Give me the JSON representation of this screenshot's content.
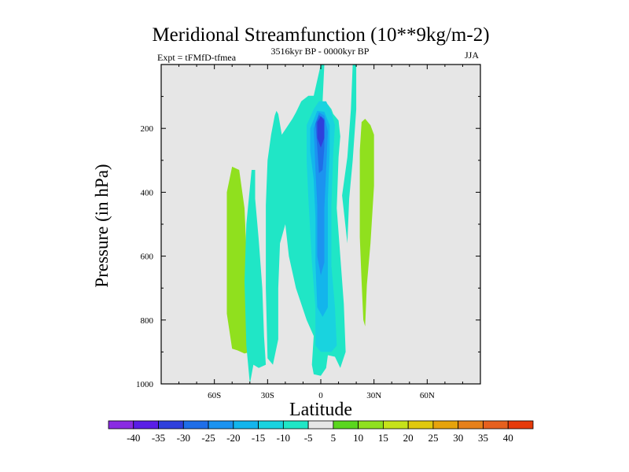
{
  "chart_data": {
    "type": "contour",
    "title": "Meridional Streamfunction (10**9kg/m-2)",
    "left_label": "Expt = tFMfD-tfmea",
    "center_label": "3516kyr BP - 0000kyr BP",
    "right_label": "JJA",
    "xlabel": "Latitude",
    "ylabel": "Pressure (in hPa)",
    "xlim": [
      -90,
      90
    ],
    "ylim": [
      0,
      1000
    ],
    "y_reversed": true,
    "x_ticks": [
      {
        "value": -60,
        "label": "60S"
      },
      {
        "value": -30,
        "label": "30S"
      },
      {
        "value": 0,
        "label": "0"
      },
      {
        "value": 30,
        "label": "30N"
      },
      {
        "value": 60,
        "label": "60N"
      }
    ],
    "y_ticks": [
      {
        "value": 200,
        "label": "200"
      },
      {
        "value": 400,
        "label": "400"
      },
      {
        "value": 600,
        "label": "600"
      },
      {
        "value": 800,
        "label": "800"
      },
      {
        "value": 1000,
        "label": "1000"
      }
    ],
    "contour_levels": [
      -40,
      -35,
      -30,
      -25,
      -20,
      -15,
      -10,
      -5,
      5,
      10,
      15,
      20,
      25,
      30,
      35,
      40
    ],
    "colorbar_labels": [
      "-40",
      "-35",
      "-30",
      "-25",
      "-20",
      "-15",
      "-10",
      "-5",
      "5",
      "10",
      "15",
      "20",
      "25",
      "30",
      "35",
      "40"
    ],
    "colors": [
      "#8a2be2",
      "#5a1ee6",
      "#2f3fdc",
      "#1f6ee8",
      "#1c93f0",
      "#13b5ec",
      "#19d3df",
      "#20e6c6",
      "#e6e6e6",
      "#5ad61e",
      "#90e01e",
      "#c6e21a",
      "#e0c80e",
      "#e6a30c",
      "#e6801a",
      "#e6601e",
      "#e63a0a"
    ],
    "background_color": "#e6e6e6",
    "regions": [
      {
        "name": "sh-positive-cell",
        "value": 10,
        "points": [
          [
            -50,
            890
          ],
          [
            -53,
            780
          ],
          [
            -53,
            400
          ],
          [
            -50,
            320
          ],
          [
            -46,
            330
          ],
          [
            -43,
            450
          ],
          [
            -41,
            700
          ],
          [
            -40,
            900
          ],
          [
            -43,
            905
          ],
          [
            -47,
            895
          ]
        ]
      },
      {
        "name": "nh-positive-cell",
        "value": 10,
        "points": [
          [
            22,
            270
          ],
          [
            22,
            540
          ],
          [
            23,
            680
          ],
          [
            24,
            800
          ],
          [
            25,
            820
          ],
          [
            26,
            690
          ],
          [
            28,
            560
          ],
          [
            30,
            380
          ],
          [
            30,
            220
          ],
          [
            28,
            190
          ],
          [
            25,
            170
          ],
          [
            23,
            180
          ]
        ]
      },
      {
        "name": "south-outer-band",
        "value": -10,
        "points": [
          [
            -40,
            1000
          ],
          [
            -42,
            880
          ],
          [
            -43,
            680
          ],
          [
            -42,
            500
          ],
          [
            -39,
            330
          ],
          [
            -37,
            330
          ],
          [
            -37,
            420
          ],
          [
            -35,
            550
          ],
          [
            -33,
            700
          ],
          [
            -32,
            850
          ],
          [
            -31,
            940
          ],
          [
            -35,
            950
          ],
          [
            -38,
            940
          ]
        ]
      },
      {
        "name": "main-negative-tongue",
        "value": -10,
        "points": [
          [
            -30,
            920
          ],
          [
            -31,
            700
          ],
          [
            -31,
            440
          ],
          [
            -30,
            300
          ],
          [
            -28,
            220
          ],
          [
            -26,
            160
          ],
          [
            -25,
            145
          ],
          [
            -24,
            155
          ],
          [
            -22,
            220
          ],
          [
            -19,
            195
          ],
          [
            -16,
            170
          ],
          [
            -14,
            150
          ],
          [
            -11,
            115
          ],
          [
            -7,
            98
          ],
          [
            -4,
            98
          ],
          [
            0,
            0
          ],
          [
            2,
            0
          ],
          [
            1,
            115
          ],
          [
            4,
            125
          ],
          [
            6,
            140
          ],
          [
            7,
            155
          ],
          [
            10,
            175
          ],
          [
            11,
            225
          ],
          [
            10,
            290
          ],
          [
            9,
            450
          ],
          [
            11,
            600
          ],
          [
            13,
            750
          ],
          [
            14,
            900
          ],
          [
            11,
            950
          ],
          [
            8,
            915
          ],
          [
            4,
            910
          ],
          [
            3,
            950
          ],
          [
            0,
            975
          ],
          [
            -4,
            970
          ],
          [
            -5,
            940
          ],
          [
            -4,
            850
          ],
          [
            -8,
            800
          ],
          [
            -14,
            700
          ],
          [
            -18,
            600
          ],
          [
            -20,
            500
          ],
          [
            -23,
            560
          ],
          [
            -24,
            700
          ],
          [
            -24,
            860
          ],
          [
            -27,
            940
          ]
        ]
      },
      {
        "name": "nh-vertical-band",
        "value": -10,
        "points": [
          [
            12,
            410
          ],
          [
            15,
            290
          ],
          [
            17,
            140
          ],
          [
            18,
            0
          ],
          [
            20,
            0
          ],
          [
            20,
            140
          ],
          [
            18,
            300
          ],
          [
            16,
            420
          ],
          [
            15,
            560
          ]
        ]
      },
      {
        "name": "level-15",
        "value": -15,
        "points": [
          [
            -8,
            190
          ],
          [
            -4,
            140
          ],
          [
            -1,
            115
          ],
          [
            3,
            115
          ],
          [
            6,
            150
          ],
          [
            8,
            190
          ],
          [
            7,
            280
          ],
          [
            6,
            440
          ],
          [
            6,
            630
          ],
          [
            8,
            760
          ],
          [
            9,
            880
          ],
          [
            6,
            900
          ],
          [
            0,
            900
          ],
          [
            -3,
            880
          ],
          [
            -3,
            760
          ],
          [
            -5,
            620
          ],
          [
            -6,
            520
          ],
          [
            -7,
            420
          ],
          [
            -8,
            300
          ]
        ]
      },
      {
        "name": "level-20",
        "value": -20,
        "points": [
          [
            -6,
            200
          ],
          [
            -2,
            145
          ],
          [
            2,
            148
          ],
          [
            5,
            190
          ],
          [
            5,
            270
          ],
          [
            4,
            420
          ],
          [
            4,
            620
          ],
          [
            4,
            760
          ],
          [
            1,
            790
          ],
          [
            -2,
            760
          ],
          [
            -3,
            620
          ],
          [
            -3,
            480
          ],
          [
            -4,
            360
          ],
          [
            -6,
            270
          ]
        ]
      },
      {
        "name": "level-25",
        "value": -25,
        "points": [
          [
            -4,
            200
          ],
          [
            -1,
            150
          ],
          [
            2,
            160
          ],
          [
            4,
            210
          ],
          [
            3,
            330
          ],
          [
            2,
            450
          ],
          [
            2,
            620
          ],
          [
            0,
            660
          ],
          [
            -2,
            600
          ],
          [
            -2,
            440
          ],
          [
            -3,
            330
          ]
        ]
      },
      {
        "name": "level-30",
        "value": -30,
        "points": [
          [
            -3,
            185
          ],
          [
            -1,
            158
          ],
          [
            2,
            170
          ],
          [
            2,
            260
          ],
          [
            1,
            330
          ],
          [
            -1,
            340
          ],
          [
            -2,
            260
          ]
        ]
      },
      {
        "name": "level-35",
        "value": -35,
        "points": [
          [
            -2,
            180
          ],
          [
            0,
            162
          ],
          [
            2,
            175
          ],
          [
            2,
            230
          ],
          [
            0,
            260
          ],
          [
            -2,
            230
          ]
        ]
      }
    ]
  }
}
